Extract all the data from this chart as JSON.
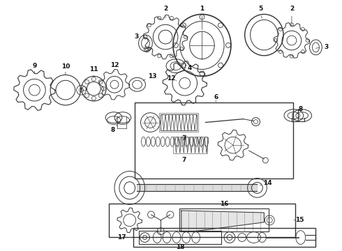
{
  "bg_color": "#ffffff",
  "line_color": "#333333",
  "label_color": "#111111",
  "fig_w": 4.9,
  "fig_h": 3.6,
  "dpi": 100
}
